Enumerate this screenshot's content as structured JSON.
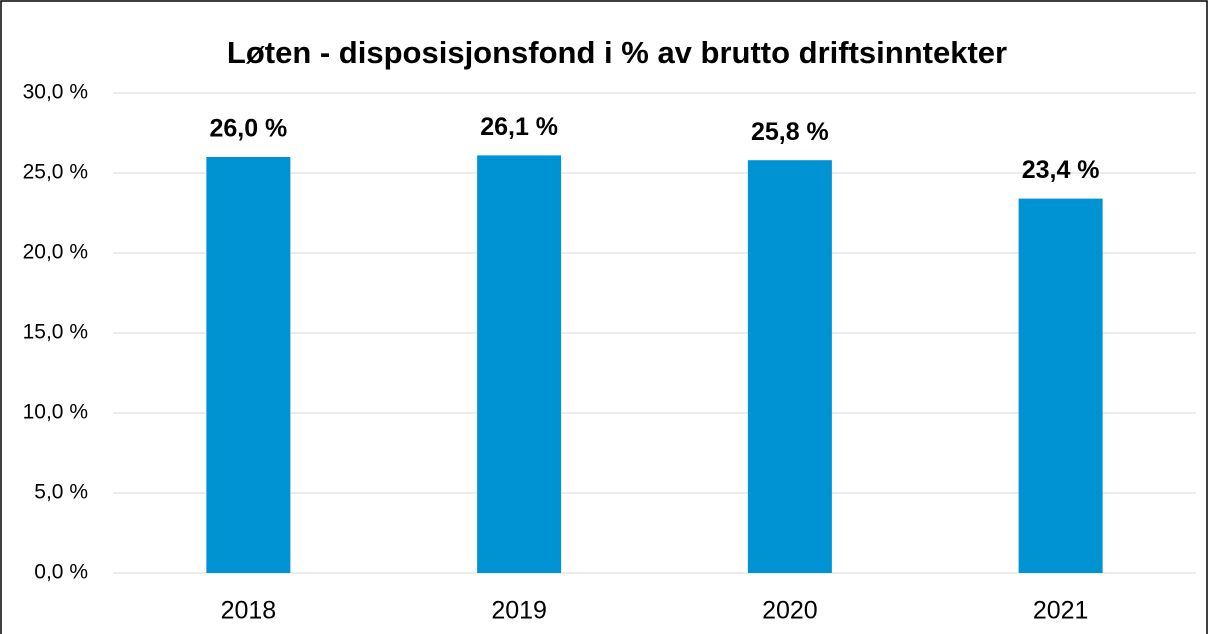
{
  "chart_data": {
    "type": "bar",
    "title": "Løten - disposisjonsfond i % av brutto driftsinntekter",
    "categories": [
      "2018",
      "2019",
      "2020",
      "2021"
    ],
    "values": [
      26.0,
      26.1,
      25.8,
      23.4
    ],
    "value_labels": [
      "26,0 %",
      "26,1 %",
      "25,8 %",
      "23,4 %"
    ],
    "color": "#0093d3",
    "ylim": [
      0,
      30
    ],
    "yticks": [
      {
        "value": 0,
        "label": "0,0 %"
      },
      {
        "value": 5,
        "label": "5,0 %"
      },
      {
        "value": 10,
        "label": "10,0 %"
      },
      {
        "value": 15,
        "label": "15,0 %"
      },
      {
        "value": 20,
        "label": "20,0 %"
      },
      {
        "value": 25,
        "label": "25,0 %"
      },
      {
        "value": 30,
        "label": "30,0 %"
      }
    ],
    "grid": true
  }
}
